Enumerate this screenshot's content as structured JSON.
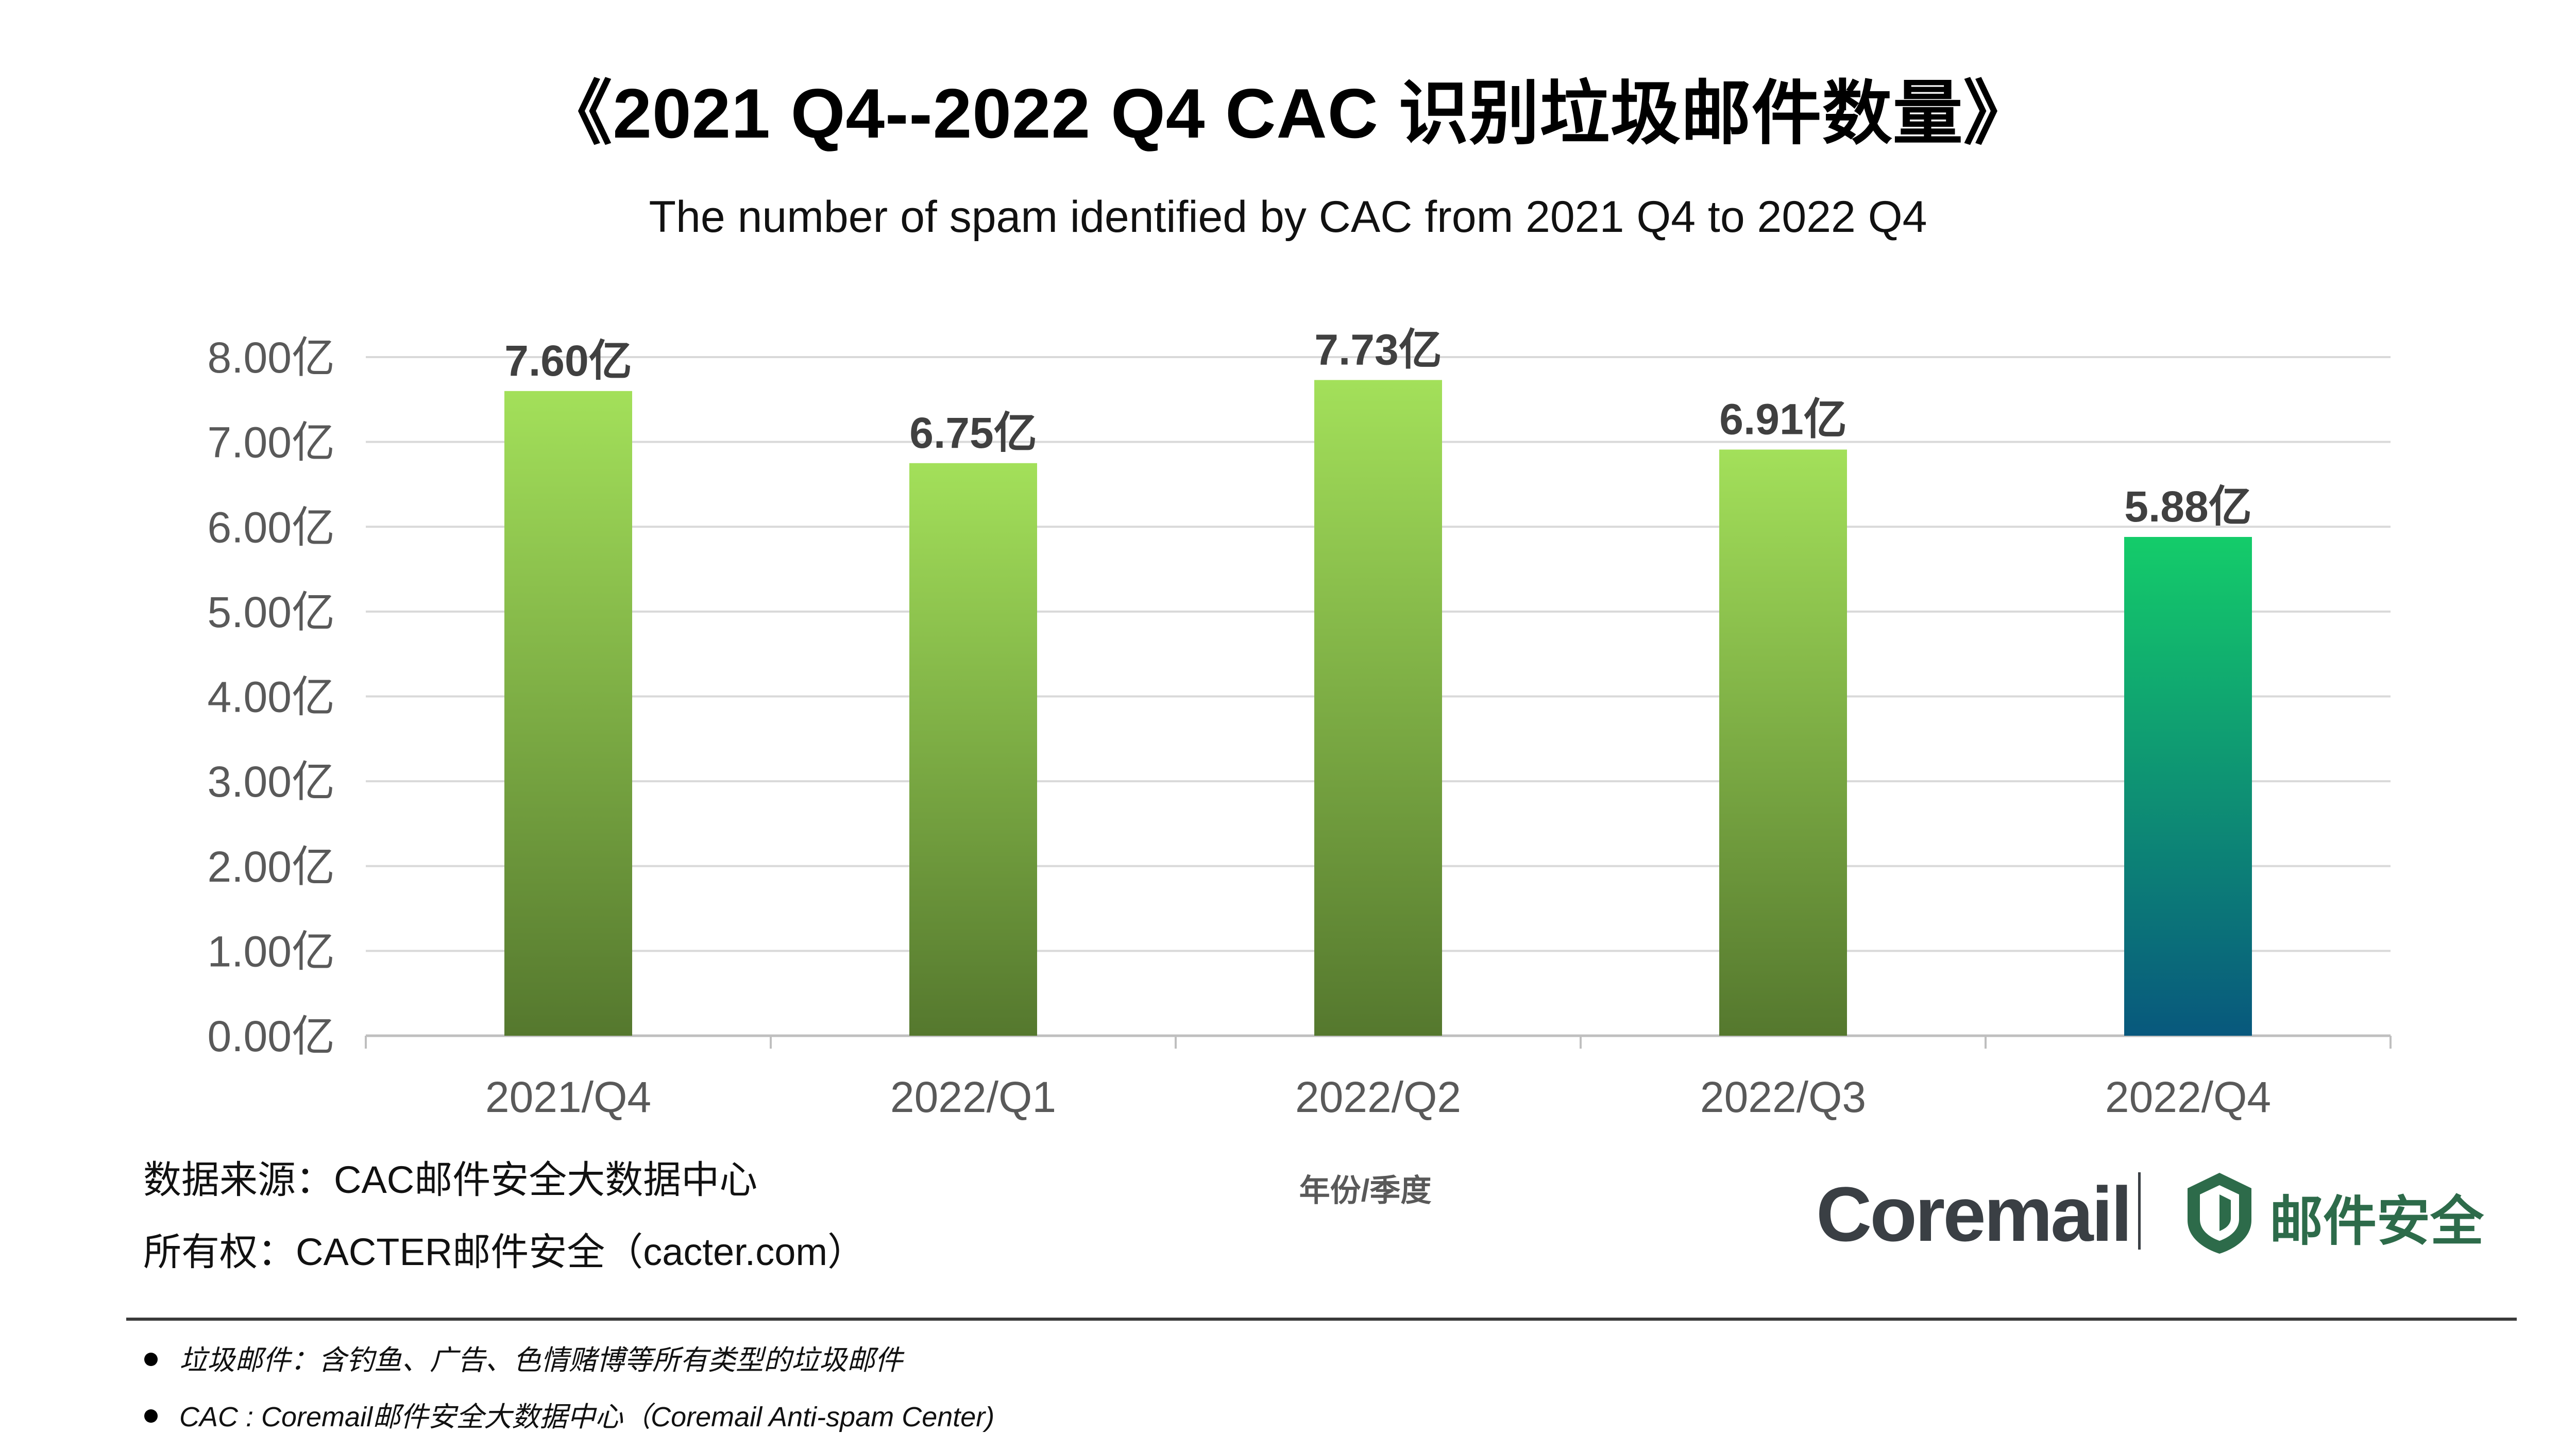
{
  "title": "《2021 Q4--2022 Q4 CAC 识别垃圾邮件数量》",
  "subtitle": "The number of spam identified by CAC from 2021 Q4 to 2022 Q4",
  "chart_data": {
    "type": "bar",
    "categories": [
      "2021/Q4",
      "2022/Q1",
      "2022/Q2",
      "2022/Q3",
      "2022/Q4"
    ],
    "values": [
      7.6,
      6.75,
      7.73,
      6.91,
      5.88
    ],
    "data_labels": [
      "7.60亿",
      "6.75亿",
      "7.73亿",
      "6.91亿",
      "5.88亿"
    ],
    "unit": "亿",
    "ylim": [
      0,
      8
    ],
    "yticks": [
      "0.00亿",
      "1.00亿",
      "2.00亿",
      "3.00亿",
      "4.00亿",
      "5.00亿",
      "6.00亿",
      "7.00亿",
      "8.00亿"
    ],
    "xlabel": "年份/季度",
    "ylabel": "",
    "grid": true,
    "colors": {
      "bar_top": "#a3e05a",
      "bar_bottom": "#55782e",
      "highlight_top": "#14cc6a",
      "highlight_bottom": "#08587d",
      "gridline": "#d9d9d9",
      "tick_text": "#595959",
      "data_label": "#404040"
    },
    "highlight_index": 4
  },
  "source": {
    "data_source": "数据来源：CAC邮件安全大数据中心",
    "ownership": "所有权：CACTER邮件安全（cacter.com）"
  },
  "notes": [
    "垃圾邮件：含钓鱼、广告、色情赌博等所有类型的垃圾邮件",
    "CAC : Coremail邮件安全大数据中心（Coremail Anti-spam Center)"
  ],
  "brand": {
    "name": "Coremail",
    "cn_name": "邮件安全",
    "shield_color": "#2d6b4a"
  }
}
